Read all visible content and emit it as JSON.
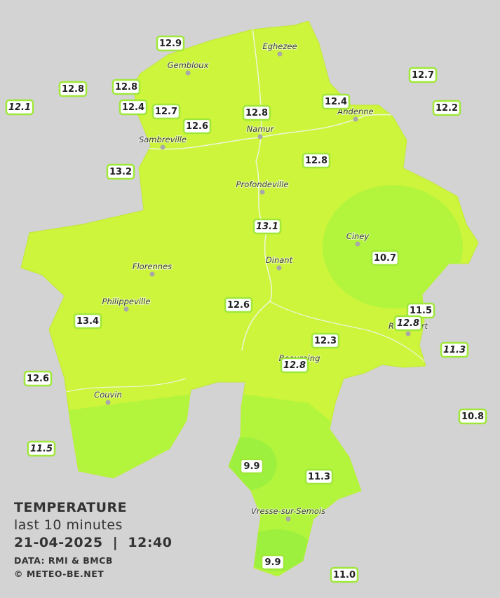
{
  "legend": {
    "title": "TEMPERATURE",
    "subtitle": "last 10 minutes",
    "datetime": "21-04-2025  |  12:40",
    "credits": [
      "DATA: RMI & BMCB",
      "© METEO-BE.NET"
    ]
  },
  "cities": [
    "Eghezee",
    "Gembloux",
    "Andenne",
    "Namur",
    "Sambreville",
    "Profondeville",
    "Ciney",
    "Dinant",
    "Florennes",
    "Philippeville",
    "Rochefort",
    "Beauraing",
    "Couvin",
    "Vresse-sur-Semois"
  ],
  "stations": [
    {
      "value": "12.9",
      "italic": false
    },
    {
      "value": "12.8",
      "italic": false
    },
    {
      "value": "12.8",
      "italic": false
    },
    {
      "value": "12.1",
      "italic": true
    },
    {
      "value": "12.4",
      "italic": false
    },
    {
      "value": "12.7",
      "italic": false
    },
    {
      "value": "12.6",
      "italic": false
    },
    {
      "value": "12.8",
      "italic": false
    },
    {
      "value": "12.4",
      "italic": false
    },
    {
      "value": "12.7",
      "italic": false
    },
    {
      "value": "12.2",
      "italic": false
    },
    {
      "value": "13.2",
      "italic": false
    },
    {
      "value": "12.8",
      "italic": false
    },
    {
      "value": "13.1",
      "italic": true
    },
    {
      "value": "10.7",
      "italic": false
    },
    {
      "value": "12.6",
      "italic": false
    },
    {
      "value": "13.4",
      "italic": false
    },
    {
      "value": "11.5",
      "italic": false
    },
    {
      "value": "12.8",
      "italic": true
    },
    {
      "value": "11.3",
      "italic": true
    },
    {
      "value": "12.3",
      "italic": false
    },
    {
      "value": "12.8",
      "italic": true
    },
    {
      "value": "12.6",
      "italic": false
    },
    {
      "value": "10.8",
      "italic": false
    },
    {
      "value": "11.5",
      "italic": true
    },
    {
      "value": "9.9",
      "italic": false
    },
    {
      "value": "11.3",
      "italic": false
    },
    {
      "value": "9.9",
      "italic": false
    },
    {
      "value": "11.0",
      "italic": false
    }
  ]
}
